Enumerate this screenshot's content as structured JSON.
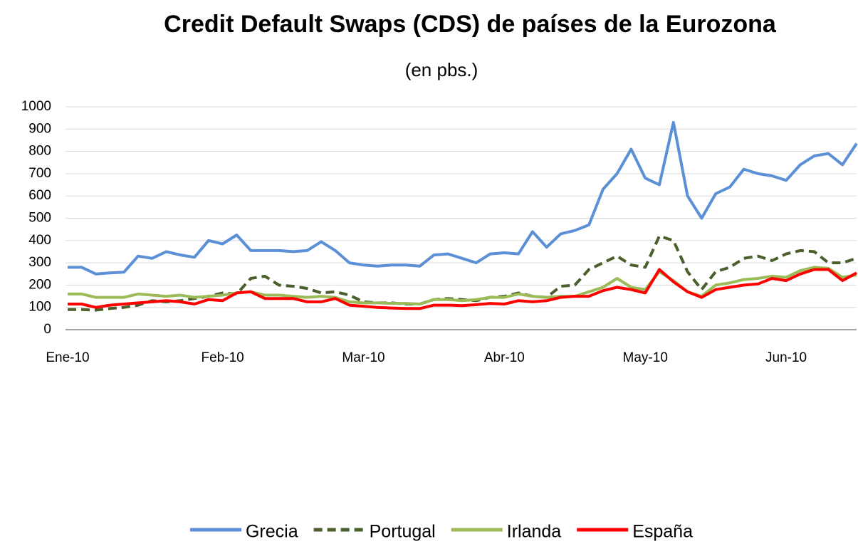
{
  "chart_data": {
    "type": "line",
    "title": "Credit Default Swaps (CDS) de países de la Eurozona",
    "subtitle": "(en pbs.)",
    "categories": [
      "Ene-10",
      null,
      null,
      null,
      null,
      null,
      null,
      null,
      null,
      null,
      null,
      "Feb-10",
      null,
      null,
      null,
      null,
      null,
      null,
      null,
      null,
      null,
      "Mar-10",
      null,
      null,
      null,
      null,
      null,
      null,
      null,
      null,
      null,
      "Abr-10",
      null,
      null,
      null,
      null,
      null,
      null,
      null,
      null,
      null,
      "May-10",
      null,
      null,
      null,
      null,
      null,
      null,
      null,
      null,
      null,
      "Jun-10",
      null,
      null,
      null,
      null,
      null
    ],
    "series": [
      {
        "name": "Grecia",
        "color": "#5b8fd6",
        "dash": false,
        "values": [
          280,
          280,
          250,
          255,
          258,
          330,
          320,
          350,
          335,
          325,
          400,
          385,
          425,
          355,
          355,
          355,
          350,
          355,
          395,
          355,
          300,
          290,
          285,
          290,
          290,
          285,
          335,
          340,
          320,
          300,
          340,
          345,
          340,
          440,
          370,
          430,
          445,
          470,
          630,
          700,
          810,
          680,
          650,
          930,
          600,
          500,
          610,
          640,
          720,
          700,
          690,
          670,
          740,
          780,
          790,
          740,
          835
        ]
      },
      {
        "name": "Portugal",
        "color": "#4a5f2b",
        "dash": true,
        "values": [
          90,
          90,
          88,
          95,
          100,
          110,
          130,
          125,
          130,
          140,
          150,
          165,
          160,
          230,
          240,
          200,
          195,
          185,
          165,
          170,
          155,
          125,
          120,
          120,
          115,
          115,
          135,
          140,
          135,
          130,
          145,
          150,
          165,
          150,
          145,
          195,
          200,
          270,
          300,
          330,
          290,
          280,
          420,
          400,
          260,
          180,
          260,
          280,
          320,
          330,
          310,
          340,
          355,
          350,
          300,
          300,
          320
        ]
      },
      {
        "name": "Irlanda",
        "color": "#9bbb59",
        "dash": false,
        "values": [
          160,
          160,
          145,
          145,
          145,
          160,
          155,
          150,
          155,
          145,
          150,
          155,
          165,
          170,
          155,
          155,
          150,
          145,
          150,
          145,
          125,
          120,
          120,
          118,
          118,
          115,
          135,
          135,
          130,
          135,
          145,
          145,
          160,
          150,
          145,
          150,
          150,
          170,
          190,
          230,
          190,
          180,
          260,
          220,
          170,
          150,
          200,
          210,
          225,
          230,
          240,
          235,
          265,
          280,
          275,
          235,
          245
        ]
      },
      {
        "name": "España",
        "color": "#ff0000",
        "dash": false,
        "values": [
          115,
          115,
          100,
          110,
          115,
          120,
          125,
          130,
          125,
          115,
          135,
          130,
          165,
          170,
          140,
          140,
          140,
          125,
          125,
          140,
          110,
          105,
          100,
          97,
          95,
          95,
          110,
          110,
          108,
          112,
          118,
          115,
          130,
          125,
          130,
          145,
          150,
          150,
          175,
          190,
          180,
          165,
          270,
          215,
          170,
          145,
          180,
          190,
          200,
          205,
          230,
          220,
          250,
          270,
          270,
          220,
          255
        ]
      }
    ],
    "ylim": [
      0,
      1000
    ],
    "yticks": [
      0,
      100,
      200,
      300,
      400,
      500,
      600,
      700,
      800,
      900,
      1000
    ],
    "grid": true,
    "legend": "bottom"
  }
}
